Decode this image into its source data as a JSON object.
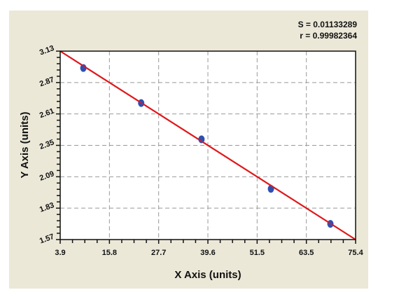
{
  "stats": {
    "s_label": "S = 0.01133289",
    "r_label": "r = 0.99982364"
  },
  "colors": {
    "panel": "#ebe8d8",
    "plot_bg": "#ffffff",
    "fit_line": "#e0181b",
    "points": "#2f4fb0",
    "grid": "#999999"
  },
  "chart_data": {
    "type": "scatter",
    "title": "",
    "xlabel": "X Axis (units)",
    "ylabel": "Y Axis (units)",
    "xlim": [
      3.9,
      75.4
    ],
    "ylim": [
      1.57,
      3.13
    ],
    "x_ticks": [
      "3.9",
      "15.8",
      "27.7",
      "39.6",
      "51.5",
      "63.5",
      "75.4"
    ],
    "y_ticks": [
      "1.57",
      "1.83",
      "2.09",
      "2.35",
      "2.61",
      "2.87",
      "3.13"
    ],
    "grid": true,
    "grid_style": "dashed",
    "legend": null,
    "series": [
      {
        "name": "Data points",
        "x": [
          9.5,
          23.5,
          38.1,
          54.9,
          69.3
        ],
        "y": [
          2.99,
          2.7,
          2.4,
          1.99,
          1.7
        ]
      },
      {
        "name": "Fit line",
        "type": "line",
        "x": [
          3.9,
          75.4
        ],
        "y": [
          3.13,
          1.57
        ]
      }
    ],
    "annotations": [
      "S = 0.01133289",
      "r = 0.99982364"
    ]
  }
}
